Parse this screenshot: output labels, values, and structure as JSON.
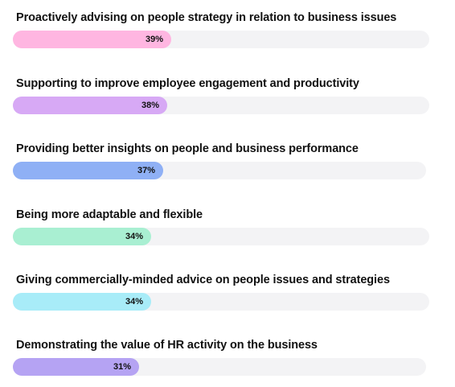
{
  "chart_data": {
    "type": "bar",
    "orientation": "horizontal",
    "categories": [
      "Proactively advising on people strategy in relation to business issues",
      "Supporting to improve employee engagement and productivity",
      "Providing better insights on people and business performance",
      "Being more adaptable and flexible",
      "Giving commercially-minded advice on people issues and strategies",
      "Demonstrating the value of HR activity on the business"
    ],
    "values": [
      39,
      38,
      37,
      34,
      34,
      31
    ],
    "value_labels": [
      "39%",
      "38%",
      "37%",
      "34%",
      "34%",
      "31%"
    ],
    "colors": [
      "#ffb6e1",
      "#d7a9f5",
      "#8fb0f5",
      "#a9efd2",
      "#a8ecf8",
      "#b5a3f3"
    ],
    "track_color": "#f3f3f5",
    "title": "",
    "xlabel": "",
    "ylabel": "",
    "grid": false,
    "legend": "none"
  }
}
